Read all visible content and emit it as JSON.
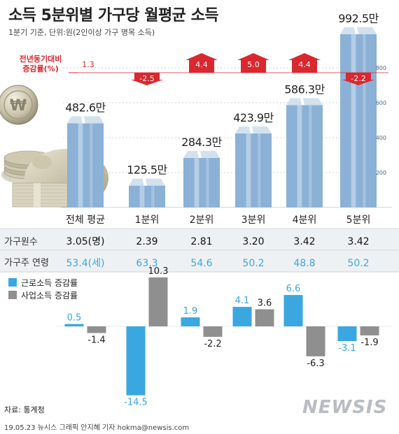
{
  "title": "소득 5분위별 가구당 월평균 소득",
  "subtitle": "1분기 기준, 단위:원(2인이상 가구 명목 소득)",
  "yoy_label": [
    "전년동기대비",
    "증감률(%)"
  ],
  "groups": [
    "전체 평균",
    "1분위",
    "2분위",
    "3분위",
    "4분위",
    "5분위"
  ],
  "income_labels": [
    "482.6만",
    "125.5만",
    "284.3만",
    "423.9만",
    "586.3만",
    "992.5만"
  ],
  "yoy_labels": [
    "1.3",
    "-2.5",
    "4.4",
    "5.0",
    "4.4",
    "-2.2"
  ],
  "household_size_label": "가구원수",
  "household_size": [
    "3.05(명)",
    "2.39",
    "2.81",
    "3.20",
    "3.42",
    "3.42"
  ],
  "head_age_label": "가구주 연령",
  "head_age": [
    "53.4(세)",
    "63.3",
    "54.6",
    "50.2",
    "48.8",
    "50.2"
  ],
  "legend": {
    "labor": "근로소득 증감률",
    "business": "사업소득 증감률"
  },
  "labor_labels": [
    "0.5",
    "-14.5",
    "1.9",
    "4.1",
    "6.6",
    "-3.1"
  ],
  "business_labels": [
    "-1.4",
    "10.3",
    "-2.2",
    "3.6",
    "-6.3",
    "-1.9"
  ],
  "source": "자료: 통계청",
  "credit": "19.05.23 뉴시스 그래픽 안지혜 기자 hokma@newsis.com",
  "logo": "NEWSIS",
  "colors": {
    "bar": "#8bb1d6",
    "labor": "#3aa7e0",
    "business": "#8f8f8f",
    "yoy": "#d9282f",
    "age": "#3aa7e0"
  },
  "chart_data": [
    {
      "type": "bar",
      "title": "소득 5분위별 가구당 월평균 소득",
      "categories": [
        "전체 평균",
        "1분위",
        "2분위",
        "3분위",
        "4분위",
        "5분위"
      ],
      "series": [
        {
          "values": [
            482.6,
            125.5,
            284.3,
            423.9,
            586.3,
            992.5
          ]
        },
        {
          "name": "전년동기대비 증감률(%)",
          "values": [
            1.3,
            -2.5,
            4.4,
            5.0,
            4.4,
            -2.2
          ]
        }
      ],
      "yticks": [
        200,
        400,
        600,
        800
      ],
      "ylim": [
        0,
        1000
      ]
    },
    {
      "type": "table",
      "columns": [
        "전체 평균",
        "1분위",
        "2분위",
        "3분위",
        "4분위",
        "5분위"
      ],
      "rows": [
        {
          "label": "가구원수",
          "values": [
            3.05,
            2.39,
            2.81,
            3.2,
            3.42,
            3.42
          ]
        },
        {
          "label": "가구주 연령",
          "values": [
            53.4,
            63.3,
            54.6,
            50.2,
            48.8,
            50.2
          ]
        }
      ]
    },
    {
      "type": "bar",
      "categories": [
        "전체 평균",
        "1분위",
        "2분위",
        "3분위",
        "4분위",
        "5분위"
      ],
      "series": [
        {
          "name": "근로소득 증감률",
          "values": [
            0.5,
            -14.5,
            1.9,
            4.1,
            6.6,
            -3.1
          ]
        },
        {
          "name": "사업소득 증감률",
          "values": [
            -1.4,
            10.3,
            -2.2,
            3.6,
            -6.3,
            -1.9
          ]
        }
      ]
    }
  ]
}
